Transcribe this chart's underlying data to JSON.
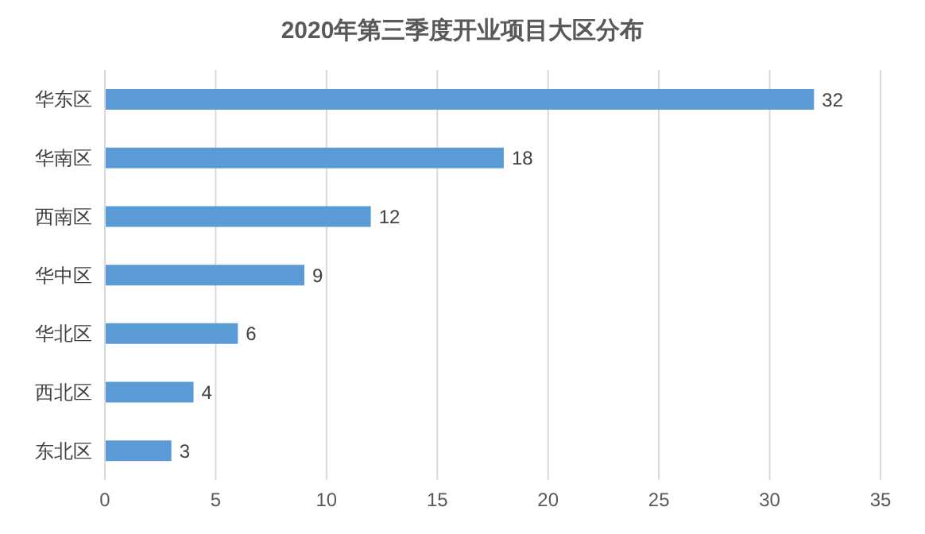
{
  "chart_data": {
    "type": "bar",
    "orientation": "horizontal",
    "title": "2020年第三季度开业项目大区分布",
    "categories": [
      "华东区",
      "华南区",
      "西南区",
      "华中区",
      "华北区",
      "西北区",
      "东北区"
    ],
    "values": [
      32,
      18,
      12,
      9,
      6,
      4,
      3
    ],
    "color": "#5b9bd5",
    "xlim": [
      0,
      35
    ],
    "xticks": [
      0,
      5,
      10,
      15,
      20,
      25,
      30,
      35
    ],
    "grid": "x",
    "data_labels": true
  }
}
